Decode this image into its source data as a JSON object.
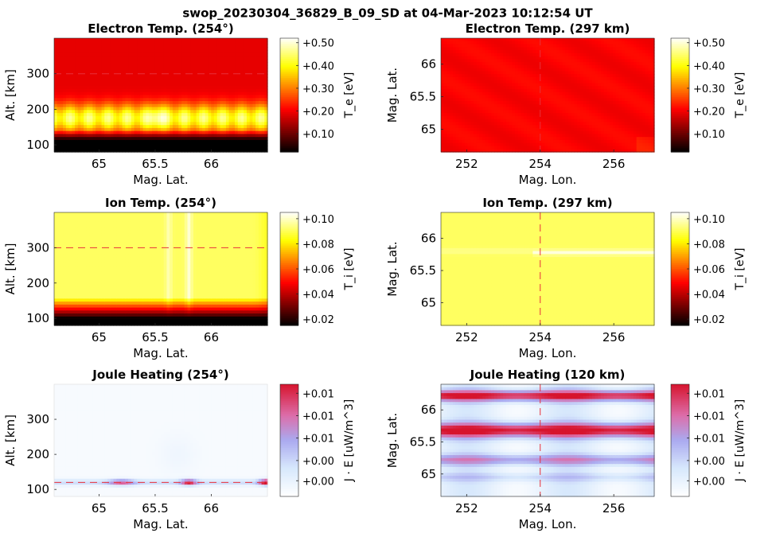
{
  "title": "swop_20230304_36829_B_09_SD at 04-Mar-2023 10:12:54 UT",
  "chart_data": [
    {
      "type": "heatmap",
      "title": "Electron Temp. (254°)",
      "xlabel": "Mag. Lat.",
      "ylabel": "Alt. [km]",
      "xlim": [
        64.6,
        66.5
      ],
      "ylim": [
        80,
        400
      ],
      "xticks": [
        {
          "v": 65,
          "label": "65"
        },
        {
          "v": 65.5,
          "label": "65.5"
        },
        {
          "v": 66,
          "label": "66"
        }
      ],
      "yticks": [
        {
          "v": 100,
          "label": "100"
        },
        {
          "v": 200,
          "label": "200"
        },
        {
          "v": 300,
          "label": "300"
        }
      ],
      "colormap": "hot",
      "colorbar_label": "T_e [eV]",
      "colorbar_range": [
        0.02,
        0.52
      ],
      "colorbar_ticks": [
        {
          "v": 0.1,
          "label": "+0.10"
        },
        {
          "v": 0.2,
          "label": "+0.20"
        },
        {
          "v": 0.3,
          "label": "+0.30"
        },
        {
          "v": 0.4,
          "label": "+0.40"
        },
        {
          "v": 0.5,
          "label": "+0.50"
        }
      ],
      "hline": 300,
      "structure": "dark red above ~220 km, bright yellow-orange band 140-220 km peaking near 65.5, black below ~140 km"
    },
    {
      "type": "heatmap",
      "title": "Electron Temp. (297 km)",
      "xlabel": "Mag. Lon.",
      "ylabel": "Mag. Lat.",
      "xlim": [
        251.3,
        257.1
      ],
      "ylim": [
        64.65,
        66.4
      ],
      "xticks": [
        {
          "v": 252,
          "label": "252"
        },
        {
          "v": 254,
          "label": "254"
        },
        {
          "v": 256,
          "label": "256"
        }
      ],
      "yticks": [
        {
          "v": 65,
          "label": "65"
        },
        {
          "v": 65.5,
          "label": "65.5"
        },
        {
          "v": 66,
          "label": "66"
        }
      ],
      "colormap": "hot",
      "colorbar_label": "T_e [eV]",
      "colorbar_range": [
        0.02,
        0.52
      ],
      "colorbar_ticks": [
        {
          "v": 0.1,
          "label": "+0.10"
        },
        {
          "v": 0.2,
          "label": "+0.20"
        },
        {
          "v": 0.3,
          "label": "+0.30"
        },
        {
          "v": 0.4,
          "label": "+0.40"
        },
        {
          "v": 0.5,
          "label": "+0.50"
        }
      ],
      "vline": 254,
      "structure": "nearly uniform dark red (~0.22 eV)"
    },
    {
      "type": "heatmap",
      "title": "Ion Temp. (254°)",
      "xlabel": "Mag. Lat.",
      "ylabel": "Alt. [km]",
      "xlim": [
        64.6,
        66.5
      ],
      "ylim": [
        80,
        400
      ],
      "xticks": [
        {
          "v": 65,
          "label": "65"
        },
        {
          "v": 65.5,
          "label": "65.5"
        },
        {
          "v": 66,
          "label": "66"
        }
      ],
      "yticks": [
        {
          "v": 100,
          "label": "100"
        },
        {
          "v": 200,
          "label": "200"
        },
        {
          "v": 300,
          "label": "300"
        }
      ],
      "colormap": "hot",
      "colorbar_label": "T_i [eV]",
      "colorbar_range": [
        0.015,
        0.105
      ],
      "colorbar_ticks": [
        {
          "v": 0.02,
          "label": "+0.02"
        },
        {
          "v": 0.04,
          "label": "+0.04"
        },
        {
          "v": 0.06,
          "label": "+0.06"
        },
        {
          "v": 0.08,
          "label": "+0.08"
        },
        {
          "v": 0.1,
          "label": "+0.10"
        }
      ],
      "hline": 300,
      "structure": "yellow above ~160 km with pale streaks near 65.6 and 65.8, orange-red transition 120-150 km, black below ~110 km"
    },
    {
      "type": "heatmap",
      "title": "Ion Temp. (297 km)",
      "xlabel": "Mag. Lon.",
      "ylabel": "Mag. Lat.",
      "xlim": [
        251.3,
        257.1
      ],
      "ylim": [
        64.65,
        66.4
      ],
      "xticks": [
        {
          "v": 252,
          "label": "252"
        },
        {
          "v": 254,
          "label": "254"
        },
        {
          "v": 256,
          "label": "256"
        }
      ],
      "yticks": [
        {
          "v": 65,
          "label": "65"
        },
        {
          "v": 65.5,
          "label": "65.5"
        },
        {
          "v": 66,
          "label": "66"
        }
      ],
      "colormap": "hot",
      "colorbar_label": "T_i [eV]",
      "colorbar_range": [
        0.015,
        0.105
      ],
      "colorbar_ticks": [
        {
          "v": 0.02,
          "label": "+0.02"
        },
        {
          "v": 0.04,
          "label": "+0.04"
        },
        {
          "v": 0.06,
          "label": "+0.06"
        },
        {
          "v": 0.08,
          "label": "+0.08"
        },
        {
          "v": 0.1,
          "label": "+0.10"
        }
      ],
      "vline": 254,
      "structure": "uniform yellow with pale streaks near 65.8 for longitudes > 254"
    },
    {
      "type": "heatmap",
      "title": "Joule Heating (254°)",
      "xlabel": "Mag. Lat.",
      "ylabel": "Alt. [km]",
      "xlim": [
        64.6,
        66.5
      ],
      "ylim": [
        80,
        400
      ],
      "xticks": [
        {
          "v": 65,
          "label": "65"
        },
        {
          "v": 65.5,
          "label": "65.5"
        },
        {
          "v": 66,
          "label": "66"
        }
      ],
      "yticks": [
        {
          "v": 100,
          "label": "100"
        },
        {
          "v": 200,
          "label": "200"
        },
        {
          "v": 300,
          "label": "300"
        }
      ],
      "colormap": "blue-white-red",
      "colorbar_label": "J · E [uW/m^3]",
      "colorbar_range": [
        0,
        1
      ],
      "colorbar_ticks": [
        {
          "v": 0.14,
          "label": "+0.00"
        },
        {
          "v": 0.32,
          "label": "+0.00"
        },
        {
          "v": 0.52,
          "label": "+0.01"
        },
        {
          "v": 0.72,
          "label": "+0.01"
        },
        {
          "v": 0.92,
          "label": "+0.01"
        }
      ],
      "hline": 120,
      "structure": "mostly white, thin red layer near 120 km, strongest near 65.8 and at 66.5"
    },
    {
      "type": "heatmap",
      "title": "Joule Heating (120 km)",
      "xlabel": "Mag. Lon.",
      "ylabel": "Mag. Lat.",
      "xlim": [
        251.3,
        257.1
      ],
      "ylim": [
        64.65,
        66.4
      ],
      "xticks": [
        {
          "v": 252,
          "label": "252"
        },
        {
          "v": 254,
          "label": "254"
        },
        {
          "v": 256,
          "label": "256"
        }
      ],
      "yticks": [
        {
          "v": 65,
          "label": "65"
        },
        {
          "v": 65.5,
          "label": "65.5"
        },
        {
          "v": 66,
          "label": "66"
        }
      ],
      "colormap": "blue-white-red",
      "colorbar_label": "J · E [uW/m^3]",
      "colorbar_range": [
        0,
        1
      ],
      "colorbar_ticks": [
        {
          "v": 0.14,
          "label": "+0.00"
        },
        {
          "v": 0.32,
          "label": "+0.00"
        },
        {
          "v": 0.52,
          "label": "+0.01"
        },
        {
          "v": 0.72,
          "label": "+0.01"
        },
        {
          "v": 0.92,
          "label": "+0.01"
        }
      ],
      "vline": 254,
      "structure": "red bands near 66.2 and 65.6-65.8, pink band near 65.2, pale blue-white between"
    }
  ]
}
